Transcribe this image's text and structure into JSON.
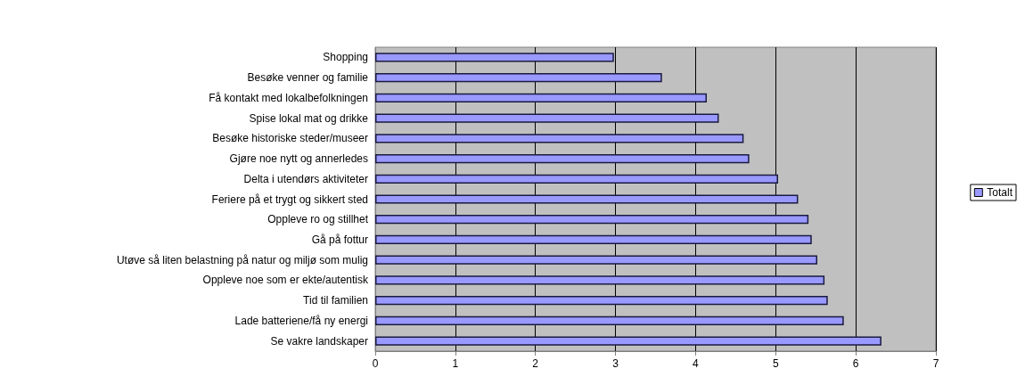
{
  "chart_data": {
    "type": "bar",
    "orientation": "horizontal",
    "categories": [
      "Shopping",
      "Besøke venner og familie",
      "Få kontakt med lokalbefolkningen",
      "Spise lokal mat og drikke",
      "Besøke historiske steder/museer",
      "Gjøre noe nytt og annerledes",
      "Delta i utendørs aktiviteter",
      "Feriere på et trygt og sikkert sted",
      "Oppleve ro og stillhet",
      "Gå på fottur",
      "Utøve så liten belastning på natur og miljø som mulig",
      "Oppleve noe som er ekte/autentisk",
      "Tid til familien",
      "Lade batteriene/få ny energi",
      "Se vakre landskaper"
    ],
    "series": [
      {
        "name": "Totalt",
        "color": "#9999ff",
        "values": [
          2.98,
          3.58,
          4.14,
          4.29,
          4.6,
          4.67,
          5.03,
          5.28,
          5.41,
          5.45,
          5.52,
          5.61,
          5.65,
          5.85,
          6.32
        ]
      }
    ],
    "xlim": [
      0,
      7
    ],
    "xticks": [
      0,
      1,
      2,
      3,
      4,
      5,
      6,
      7
    ],
    "grid": "x",
    "legend": "right"
  }
}
